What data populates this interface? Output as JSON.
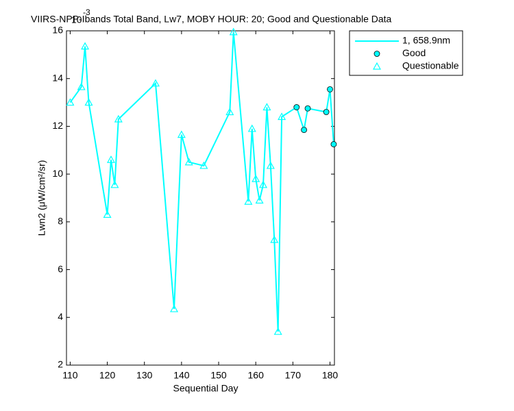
{
  "chart_data": {
    "type": "line",
    "title": "VIIRS-NPP-Ibands Total Band, Lw7, MOBY HOUR: 20;  Good and Questionable Data",
    "y_exponent_base": "10",
    "y_exponent": "-3",
    "x_label": "Sequential Day",
    "y_label": "Lwn2 (μW/cm²/sr)",
    "xlim": [
      109,
      181.2
    ],
    "ylim": [
      2,
      16
    ],
    "xticks": [
      110,
      120,
      130,
      140,
      150,
      160,
      170,
      180
    ],
    "yticks": [
      2,
      4,
      6,
      8,
      10,
      12,
      14,
      16
    ],
    "grid": false,
    "legend": "outside-top-right",
    "series": [
      {
        "name": "1, 658.9nm",
        "color": "#00ffff",
        "marker": "line"
      },
      {
        "name": "Good",
        "color": "#00ffff",
        "marker": "circle",
        "x": [
          171,
          173,
          174,
          179,
          180,
          181
        ],
        "values": [
          12.8,
          11.85,
          12.75,
          12.6,
          13.55,
          11.25
        ]
      },
      {
        "name": "Questionable",
        "color": "#00ffff",
        "marker": "triangle",
        "x": [
          110,
          113,
          114,
          115,
          120,
          121,
          122,
          123,
          133,
          138,
          140,
          142,
          146,
          153,
          154,
          158,
          159,
          160,
          161,
          162,
          163,
          164,
          165,
          166,
          167
        ],
        "values": [
          13.0,
          13.65,
          15.35,
          13.0,
          8.3,
          10.6,
          9.55,
          12.3,
          13.8,
          4.35,
          11.65,
          10.5,
          10.35,
          12.6,
          15.95,
          8.85,
          11.9,
          9.8,
          8.9,
          9.55,
          12.8,
          10.35,
          7.25,
          3.4,
          12.4
        ]
      }
    ]
  }
}
